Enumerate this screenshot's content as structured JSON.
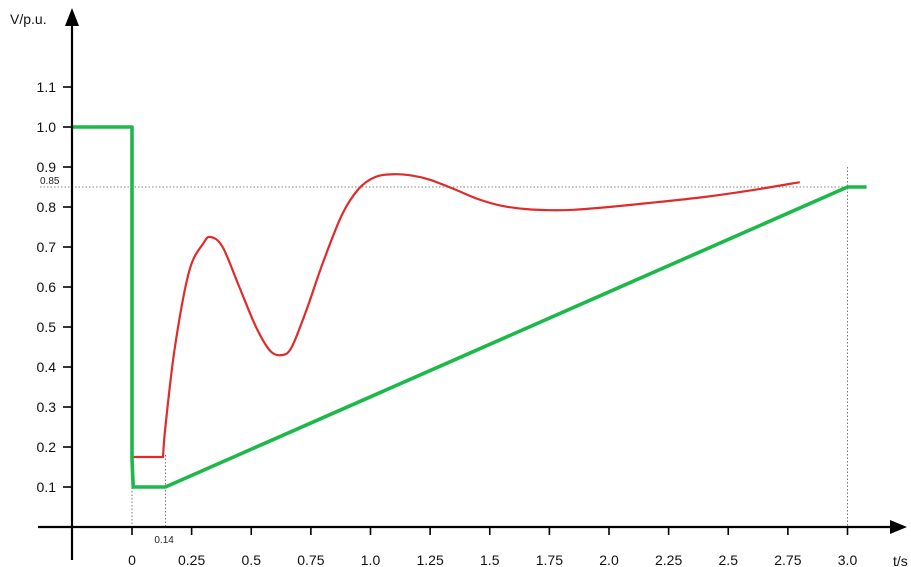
{
  "chart_data": {
    "type": "line",
    "xlabel": "t/s",
    "ylabel": "V/p.u.",
    "xlim": [
      -0.25,
      3.25
    ],
    "ylim": [
      0,
      1.1
    ],
    "x_ticks": [
      "0",
      "0.25",
      "0.5",
      "0.75",
      "1.0",
      "1.25",
      "1.5",
      "1.75",
      "2.0",
      "2.25",
      "2.5",
      "2.75",
      "3.0"
    ],
    "x_tick_values": [
      0,
      0.25,
      0.5,
      0.75,
      1.0,
      1.25,
      1.5,
      1.75,
      2.0,
      2.25,
      2.5,
      2.75,
      3.0
    ],
    "y_ticks": [
      "0.1",
      "0.2",
      "0.3",
      "0.4",
      "0.5",
      "0.6",
      "0.7",
      "0.8",
      "0.9",
      "1.0",
      "1.1"
    ],
    "y_tick_values": [
      0.1,
      0.2,
      0.3,
      0.4,
      0.5,
      0.6,
      0.7,
      0.8,
      0.9,
      1.0,
      1.1
    ],
    "annotations": [
      {
        "text": "0.85",
        "axis": "y",
        "value": 0.85
      },
      {
        "text": "0.14",
        "axis": "x",
        "value": 0.14
      }
    ],
    "grid": false,
    "colors": {
      "red": "#e02b2b",
      "green": "#1db84a",
      "axis": "#000000",
      "ref": "#555555"
    },
    "series": [
      {
        "color": "red",
        "x": [
          -0.25,
          0.0,
          0.0,
          0.01,
          0.13,
          0.14,
          0.18,
          0.24,
          0.3,
          0.33,
          0.38,
          0.45,
          0.52,
          0.58,
          0.63,
          0.67,
          0.73,
          0.8,
          0.88,
          0.95,
          1.02,
          1.1,
          1.18,
          1.25,
          1.35,
          1.45,
          1.55,
          1.65,
          1.75,
          1.85,
          2.0,
          2.2,
          2.4,
          2.6,
          2.8
        ],
        "y": [
          1.0,
          1.0,
          0.175,
          0.175,
          0.175,
          0.25,
          0.45,
          0.64,
          0.71,
          0.725,
          0.7,
          0.6,
          0.5,
          0.44,
          0.43,
          0.45,
          0.54,
          0.66,
          0.78,
          0.845,
          0.875,
          0.882,
          0.878,
          0.868,
          0.845,
          0.82,
          0.803,
          0.795,
          0.792,
          0.793,
          0.8,
          0.812,
          0.825,
          0.842,
          0.862
        ]
      },
      {
        "color": "green",
        "x": [
          -0.25,
          0.0,
          0.0,
          0.005,
          0.14,
          3.0,
          3.08
        ],
        "y": [
          1.0,
          1.0,
          0.17,
          0.1,
          0.1,
          0.85,
          0.85
        ]
      }
    ]
  }
}
